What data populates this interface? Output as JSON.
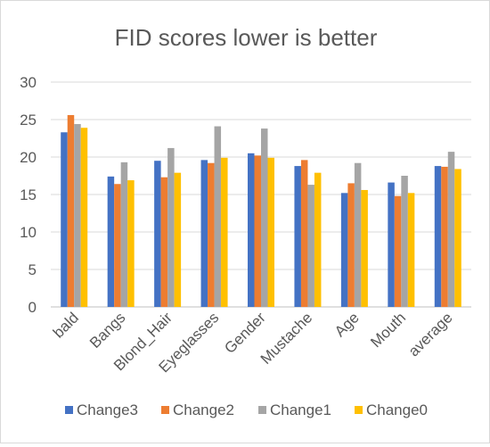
{
  "chart_data": {
    "type": "bar",
    "title": "FID scores lower is better",
    "xlabel": "",
    "ylabel": "",
    "ylim": [
      0,
      30
    ],
    "yticks": [
      0,
      5,
      10,
      15,
      20,
      25,
      30
    ],
    "grid": true,
    "legend_position": "bottom",
    "categories": [
      "bald",
      "Bangs",
      "Blond_Hair",
      "Eyeglasses",
      "Gender",
      "Mustache",
      "Age",
      "Mouth",
      "average"
    ],
    "series": [
      {
        "name": "Change3",
        "color": "#4472C4",
        "values": [
          23.3,
          17.4,
          19.5,
          19.6,
          20.5,
          18.8,
          15.2,
          16.6,
          18.8
        ]
      },
      {
        "name": "Change2",
        "color": "#ED7D31",
        "values": [
          25.6,
          16.4,
          17.3,
          19.2,
          20.2,
          19.6,
          16.5,
          14.8,
          18.7
        ]
      },
      {
        "name": "Change1",
        "color": "#A5A5A5",
        "values": [
          24.4,
          19.3,
          21.2,
          24.1,
          23.8,
          16.3,
          19.2,
          17.5,
          20.7
        ]
      },
      {
        "name": "Change0",
        "color": "#FFC000",
        "values": [
          23.9,
          16.9,
          17.9,
          19.9,
          19.9,
          17.9,
          15.6,
          15.2,
          18.4
        ]
      }
    ]
  }
}
